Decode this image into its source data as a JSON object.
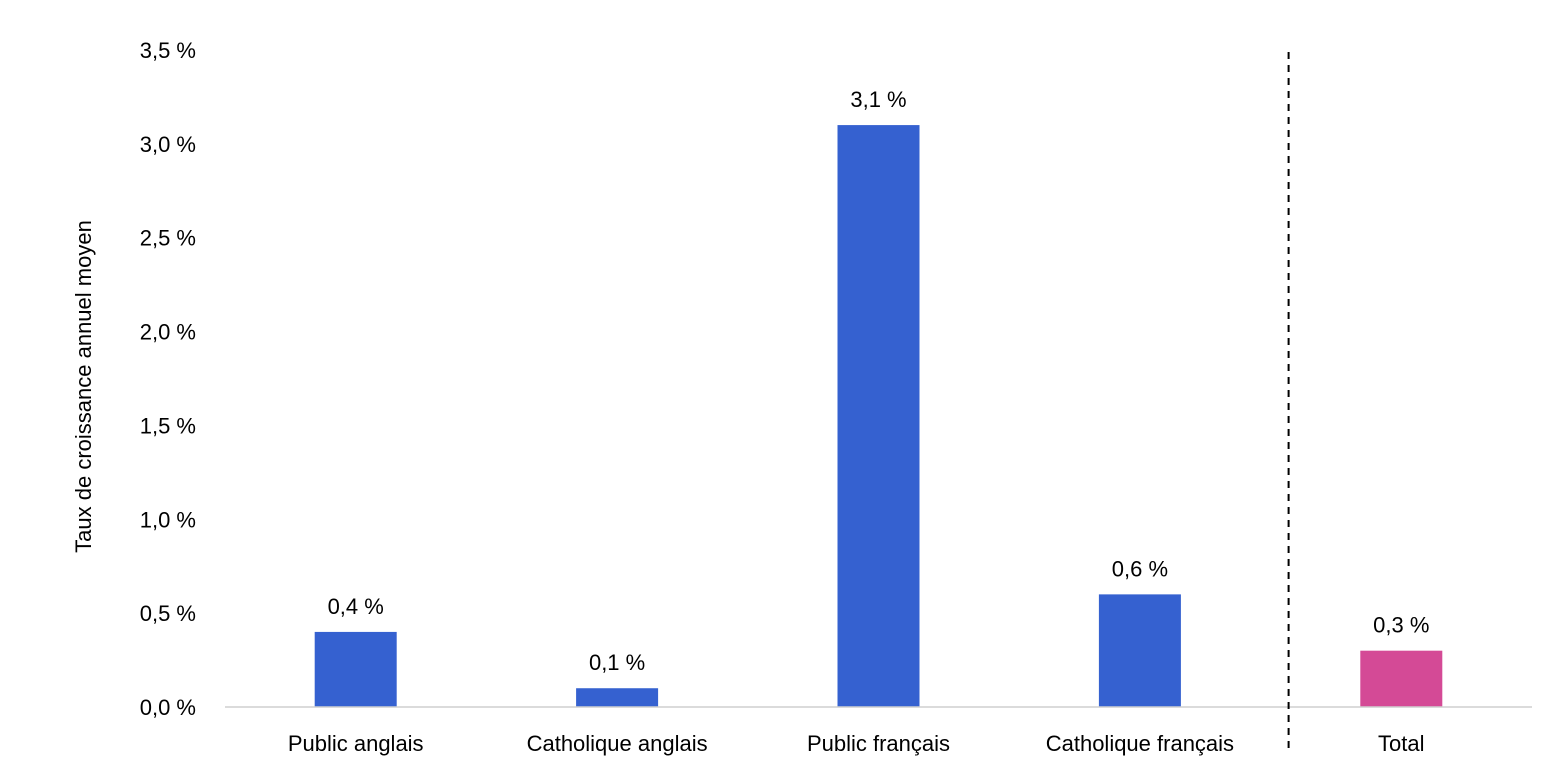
{
  "chart_data": {
    "type": "bar",
    "title": "",
    "xlabel": "",
    "ylabel": "Taux de croissance annuel moyen",
    "ylim": [
      0,
      3.5
    ],
    "yticks": [
      0,
      0.5,
      1.0,
      1.5,
      2.0,
      2.5,
      3.0,
      3.5
    ],
    "ytick_labels": [
      "0,0 %",
      "0,5 %",
      "1,0 %",
      "1,5 %",
      "2,0 %",
      "2,5 %",
      "3,0 %",
      "3,5 %"
    ],
    "categories": [
      "Public anglais",
      "Catholique anglais",
      "Public français",
      "Catholique français",
      "Total"
    ],
    "values": [
      0.4,
      0.1,
      3.1,
      0.6,
      0.3
    ],
    "value_labels": [
      "0,4 %",
      "0,1 %",
      "3,1 %",
      "0,6 %",
      "0,3 %"
    ],
    "bar_colors": [
      "#3561d0",
      "#3561d0",
      "#3561d0",
      "#3561d0",
      "#d44a96"
    ],
    "grid": false,
    "separator": "dashed vertical line between Catholique français and Total",
    "legend": "none"
  }
}
